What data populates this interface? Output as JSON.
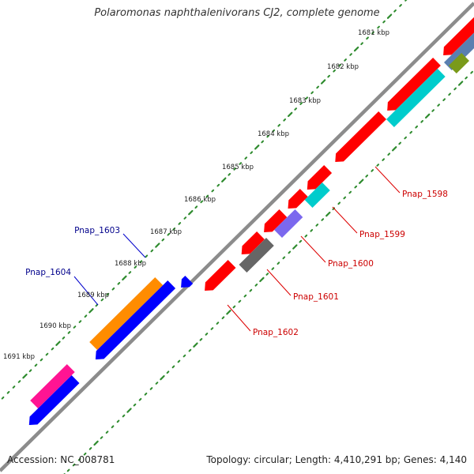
{
  "title": "Polaromonas naphthalenivorans CJ2, complete genome",
  "accession": "Accession: NC_008781",
  "summary": "Topology: circular; Length: 4,410,291 bp; Genes: 4,140",
  "colors": {
    "backbone": "#8c8c8c",
    "tick_dots": "#2e8b2e",
    "label_forward": "#00008b",
    "label_reverse": "#cc0000",
    "line_forward": "#0000cc",
    "line_reverse": "#dd0000"
  },
  "scale_labels": [
    "1681 kbp",
    "1682 kbp",
    "1683 kbp",
    "1684 kbp",
    "1685 kbp",
    "1686 kbp",
    "1687 kbp",
    "1688 kbp",
    "1689 kbp",
    "1690 kbp",
    "1691 kbp"
  ],
  "gene_labels": [
    {
      "name": "Pnap_1598",
      "strand": "reverse"
    },
    {
      "name": "Pnap_1599",
      "strand": "reverse"
    },
    {
      "name": "Pnap_1600",
      "strand": "reverse"
    },
    {
      "name": "Pnap_1601",
      "strand": "reverse"
    },
    {
      "name": "Pnap_1602",
      "strand": "reverse"
    },
    {
      "name": "Pnap_1603",
      "strand": "forward"
    },
    {
      "name": "Pnap_1604",
      "strand": "forward"
    }
  ],
  "features": [
    {
      "strand": "reverse",
      "color": "#ff0000"
    },
    {
      "strand": "reverse",
      "color": "#ff0000"
    },
    {
      "strand": "reverse",
      "color": "#ff0000"
    },
    {
      "strand": "reverse",
      "color": "#ff0000"
    },
    {
      "strand": "reverse",
      "color": "#ff0000"
    },
    {
      "strand": "reverse",
      "color": "#ff0000"
    },
    {
      "strand": "reverse",
      "color": "#ff0000"
    },
    {
      "strand": "reverse",
      "color": "#ff0000"
    },
    {
      "strand": "reverse",
      "color": "#5a7fb0"
    },
    {
      "strand": "reverse",
      "color": "#7a9a1a"
    },
    {
      "strand": "reverse",
      "color": "#00cccc"
    },
    {
      "strand": "reverse",
      "color": "#00cccc"
    },
    {
      "strand": "reverse",
      "color": "#7b68ee"
    },
    {
      "strand": "reverse",
      "color": "#666666"
    },
    {
      "strand": "forward",
      "color": "#ff8c00"
    },
    {
      "strand": "forward",
      "color": "#0000ff"
    },
    {
      "strand": "forward",
      "color": "#0000ff"
    },
    {
      "strand": "forward",
      "color": "#ff1493"
    },
    {
      "strand": "forward",
      "color": "#0000ff"
    }
  ]
}
